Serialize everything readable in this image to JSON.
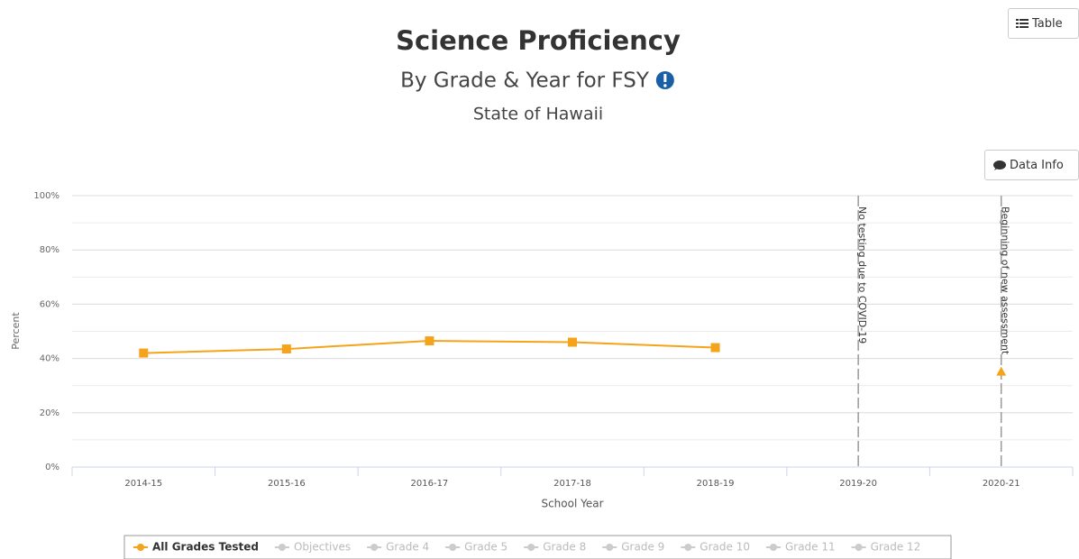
{
  "chart_data": {
    "type": "line",
    "title": "Science Proficiency",
    "subtitle": "By Grade & Year for FSY",
    "caption": "State of Hawaii",
    "x_label": "School Year",
    "y_label": "Percent",
    "categories": [
      "2014-15",
      "2015-16",
      "2016-17",
      "2017-18",
      "2018-19",
      "2019-20",
      "2020-21"
    ],
    "series": [
      {
        "name": "All Grades Tested",
        "color": "#f5a31a",
        "values": [
          42,
          43.5,
          46.5,
          46,
          44,
          null,
          35
        ],
        "markers": [
          "square",
          "square",
          "square",
          "square",
          "square",
          null,
          "triangle"
        ]
      }
    ],
    "hidden_series": [
      "Objectives",
      "Grade 4",
      "Grade 5",
      "Grade 8",
      "Grade 9",
      "Grade 10",
      "Grade 11",
      "Grade 12"
    ],
    "ylim": [
      0,
      100
    ],
    "yticks": [
      {
        "value": 0,
        "label": "0%"
      },
      {
        "value": 20,
        "label": "20%"
      },
      {
        "value": 40,
        "label": "40%"
      },
      {
        "value": 60,
        "label": "60%"
      },
      {
        "value": 80,
        "label": "80%"
      },
      {
        "value": 100,
        "label": "100%"
      }
    ],
    "minor_yticks": [
      10,
      30,
      50,
      70,
      90
    ],
    "grid": true,
    "plot_lines": [
      {
        "category": "2019-20",
        "label": "No testing due to COVID-19"
      },
      {
        "category": "2020-21",
        "label": "Beginning of new assessment"
      }
    ],
    "buttons": [
      "Table",
      "Data Info"
    ]
  }
}
